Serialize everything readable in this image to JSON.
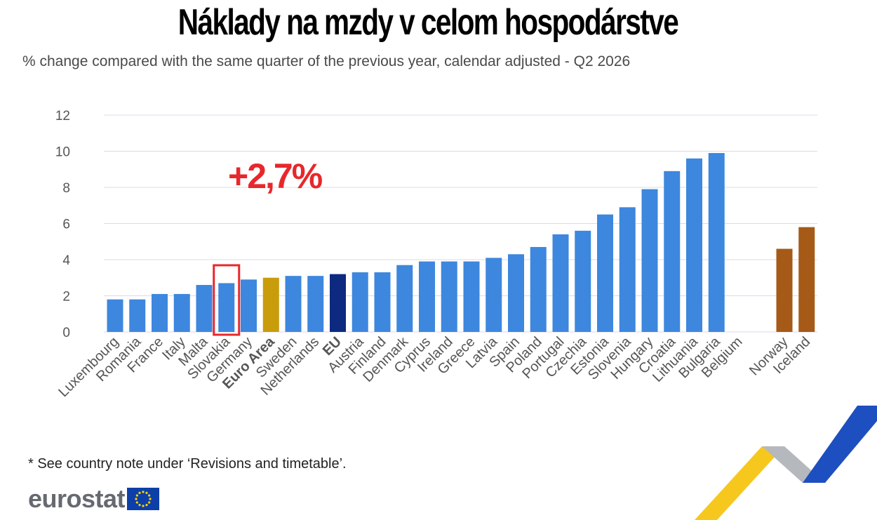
{
  "title": "Náklady na mzdy v celom hospodárstve",
  "subtitle": "% change compared with the same quarter of the previous year, calendar adjusted - Q2 2026",
  "footnote": "* See country note under ‘Revisions and timetable’.",
  "brand": "eurostat",
  "colors": {
    "country": "#3d87de",
    "euro_area": "#c99c0c",
    "eu": "#0d2a80",
    "efta": "#a65a17",
    "highlight": "#e8272c",
    "grid": "#ddd8ea",
    "tick_text": "#555555"
  },
  "chart_data": {
    "type": "bar",
    "title": "Náklady na mzdy v celom hospodárstve",
    "subtitle": "% change compared with the same quarter of the previous year, calendar adjusted - Q2 2026",
    "ylim": [
      0,
      12
    ],
    "yticks": [
      0,
      2,
      4,
      6,
      8,
      10,
      12
    ],
    "grid": true,
    "categories": [
      "Luxembourg",
      "Romania",
      "France",
      "Italy",
      "Malta",
      "Slovakia",
      "Germany",
      "Euro Area",
      "Sweden",
      "Netherlands",
      "EU",
      "Austria",
      "Finland",
      "Denmark",
      "Cyprus",
      "Ireland",
      "Greece",
      "Latvia",
      "Spain",
      "Poland",
      "Portugal",
      "Czechia",
      "Estonia",
      "Slovenia",
      "Hungary",
      "Croatia",
      "Lithuania",
      "Bulgaria",
      "Belgium",
      "Norway",
      "Iceland"
    ],
    "values": [
      1.8,
      1.8,
      2.1,
      2.1,
      2.6,
      2.7,
      2.9,
      3.0,
      3.1,
      3.1,
      3.2,
      3.3,
      3.3,
      3.7,
      3.9,
      3.9,
      3.9,
      4.1,
      4.3,
      4.7,
      5.4,
      5.6,
      6.5,
      6.9,
      7.9,
      8.9,
      9.6,
      9.9,
      null,
      4.6,
      5.8
    ],
    "bar_kind": [
      "country",
      "country",
      "country",
      "country",
      "country",
      "country",
      "country",
      "euro_area",
      "country",
      "country",
      "eu",
      "country",
      "country",
      "country",
      "country",
      "country",
      "country",
      "country",
      "country",
      "country",
      "country",
      "country",
      "country",
      "country",
      "country",
      "country",
      "country",
      "country",
      "country",
      "efta",
      "efta"
    ],
    "bold_labels": [
      "Euro Area",
      "EU"
    ],
    "highlighted": "Slovakia",
    "annotation": "+2,7%"
  }
}
